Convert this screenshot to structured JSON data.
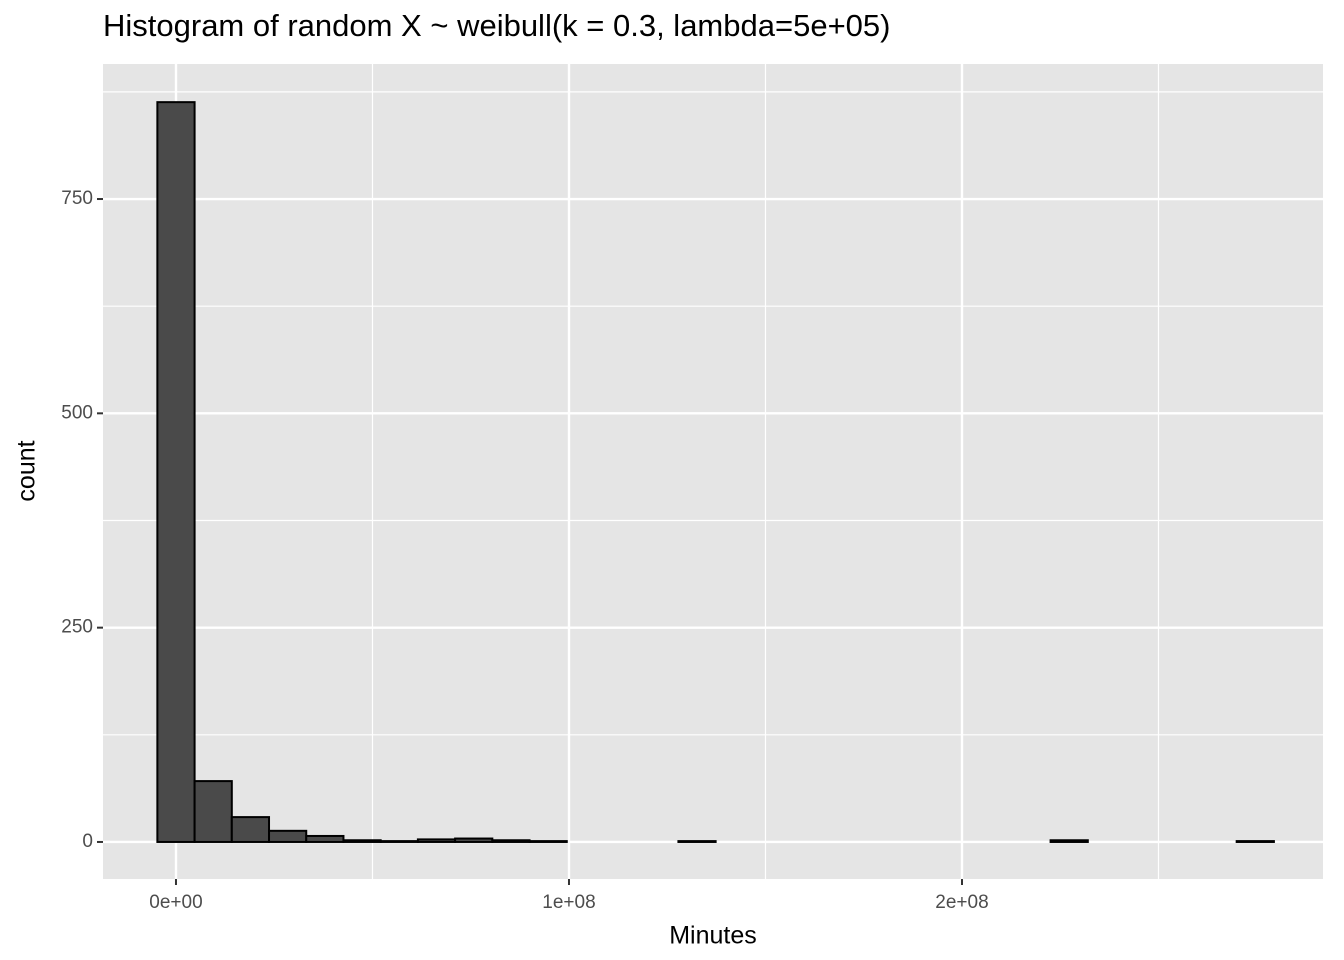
{
  "chart_data": {
    "type": "histogram",
    "title": "Histogram of random X ~ weibull(k = 0.3, lambda=5e+05)",
    "x_label": "Minutes",
    "y_label": "count",
    "bins": [
      -4735000,
      4735000,
      14205000,
      23675000,
      33145000,
      42615000,
      52085000,
      61555000,
      71025000,
      80495000,
      89965000,
      99435000,
      108905000,
      118375000,
      127845000,
      137315000,
      146785000,
      156255000,
      165725000,
      175195000,
      184665000,
      194135000,
      203605000,
      213075000,
      222545000,
      232015000,
      241485000,
      250955000,
      260425000,
      269895000,
      279365000
    ],
    "counts": [
      863,
      71,
      29,
      13,
      7,
      2,
      1,
      3,
      4,
      2,
      1,
      0,
      0,
      0,
      1,
      0,
      0,
      0,
      0,
      0,
      0,
      0,
      0,
      0,
      2,
      0,
      0,
      0,
      0,
      1
    ],
    "color": "#4a4a4a",
    "edge_color": "#000000",
    "xlim": [
      -18570000,
      291860000
    ],
    "xticks": [
      {
        "value": 0,
        "label": "0e+00"
      },
      {
        "value": 100000000,
        "label": "1e+08"
      },
      {
        "value": 200000000,
        "label": "2e+08"
      }
    ],
    "ylim": [
      -43.2,
      907.5
    ],
    "yticks": [
      0,
      250,
      500,
      750
    ],
    "grid": true
  }
}
